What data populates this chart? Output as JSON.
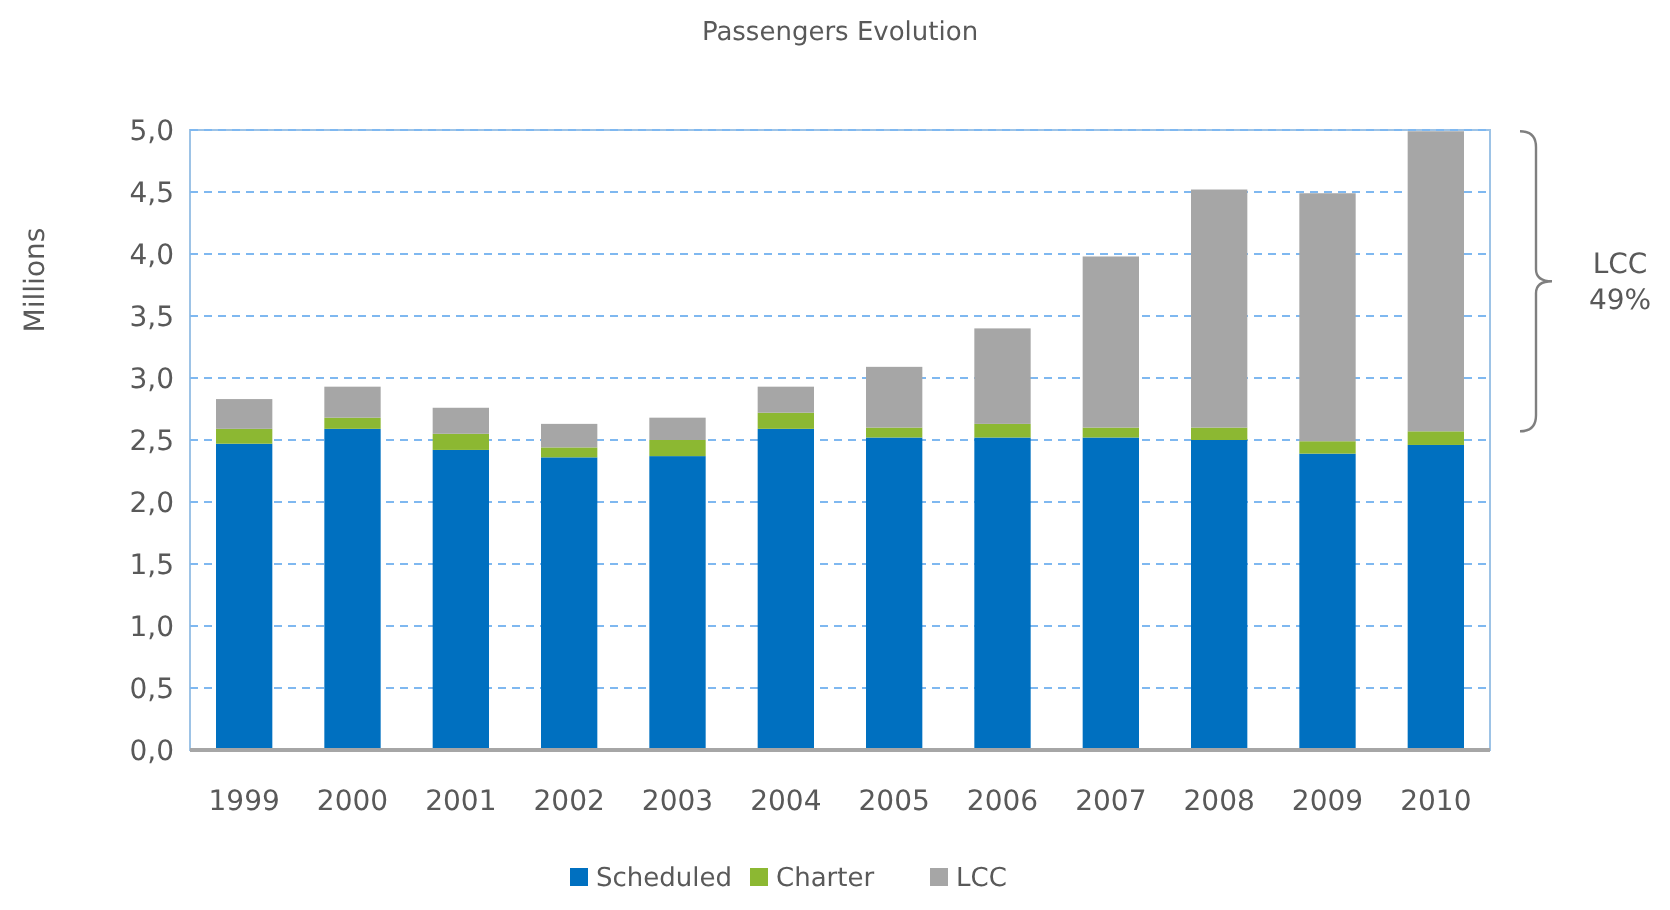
{
  "chart_data": {
    "type": "bar",
    "title": "Passengers Evolution",
    "ylabel": "Millions",
    "categories": [
      "1999",
      "2000",
      "2001",
      "2002",
      "2003",
      "2004",
      "2005",
      "2006",
      "2007",
      "2008",
      "2009",
      "2010"
    ],
    "series": [
      {
        "name": "Scheduled",
        "color": "#0070c0",
        "values": [
          2.47,
          2.59,
          2.42,
          2.36,
          2.37,
          2.59,
          2.52,
          2.52,
          2.52,
          2.5,
          2.39,
          2.46
        ]
      },
      {
        "name": "Charter",
        "color": "#8cb832",
        "values": [
          0.12,
          0.09,
          0.13,
          0.08,
          0.13,
          0.13,
          0.08,
          0.11,
          0.08,
          0.1,
          0.1,
          0.11
        ]
      },
      {
        "name": "LCC",
        "color": "#a6a6a6",
        "values": [
          0.24,
          0.25,
          0.21,
          0.19,
          0.18,
          0.21,
          0.49,
          0.77,
          1.38,
          1.92,
          2.0,
          2.42
        ]
      }
    ],
    "stacked": true,
    "ylim": [
      0,
      5
    ],
    "yticks": [
      {
        "value": 0,
        "label": "0,0"
      },
      {
        "value": 0.5,
        "label": "0,5"
      },
      {
        "value": 1,
        "label": "1,0"
      },
      {
        "value": 1.5,
        "label": "1,5"
      },
      {
        "value": 2,
        "label": "2,0"
      },
      {
        "value": 2.5,
        "label": "2,5"
      },
      {
        "value": 3,
        "label": "3,0"
      },
      {
        "value": 3.5,
        "label": "3,5"
      },
      {
        "value": 4,
        "label": "4,0"
      },
      {
        "value": 4.5,
        "label": "4,5"
      },
      {
        "value": 5,
        "label": "5,0"
      }
    ],
    "grid": "y",
    "line_style": "dashed",
    "legend": "bottom",
    "annotations": [
      "LCC\n49%"
    ]
  }
}
